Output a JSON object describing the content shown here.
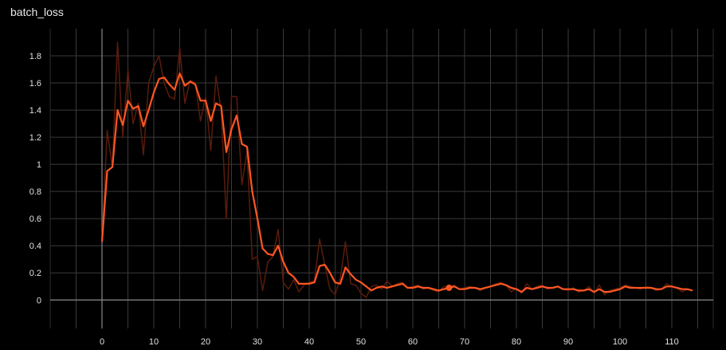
{
  "chart_data": {
    "type": "line",
    "title": "batch_loss",
    "xlabel": "",
    "ylabel": "",
    "xlim": [
      -10,
      118
    ],
    "ylim": [
      -0.21,
      2.0
    ],
    "x_ticks": [
      0,
      10,
      20,
      30,
      40,
      50,
      60,
      70,
      80,
      90,
      100,
      110
    ],
    "y_ticks": [
      0,
      0.2,
      0.4,
      0.6,
      0.8,
      1,
      1.2,
      1.4,
      1.6,
      1.8
    ],
    "y_tick_labels": [
      "0",
      "0.2",
      "0.4",
      "0.6",
      "0.8",
      "1",
      "1.2",
      "1.4",
      "1.6",
      "1.8"
    ],
    "grid": true,
    "colors": {
      "smoothed": "#ff5722",
      "raw": "#5a1c0c",
      "grid": "#3a3a3a",
      "axis": "#888888"
    },
    "highlight_point": {
      "x": 67,
      "y": 0.09
    },
    "series": [
      {
        "role": "raw",
        "x": [
          0,
          1,
          2,
          3,
          4,
          5,
          6,
          7,
          8,
          9,
          10,
          11,
          12,
          13,
          14,
          15,
          16,
          17,
          18,
          19,
          20,
          21,
          22,
          23,
          24,
          25,
          26,
          27,
          28,
          29,
          30,
          31,
          32,
          33,
          34,
          35,
          36,
          37,
          38,
          39,
          40,
          41,
          42,
          43,
          44,
          45,
          46,
          47,
          48,
          49,
          50,
          51,
          52,
          53,
          54,
          55,
          56,
          57,
          58,
          59,
          60,
          61,
          62,
          63,
          64,
          65,
          66,
          67,
          68,
          69,
          70,
          71,
          72,
          73,
          74,
          75,
          76,
          77,
          78,
          79,
          80,
          81,
          82,
          83,
          84,
          85,
          86,
          87,
          88,
          89,
          90,
          91,
          92,
          93,
          94,
          95,
          96,
          97,
          98,
          99,
          100,
          101,
          102,
          103,
          104,
          105,
          106,
          107,
          108,
          109,
          110,
          111,
          112,
          113,
          114
        ],
        "values": [
          0.43,
          1.25,
          0.98,
          1.9,
          1.2,
          1.7,
          1.3,
          1.45,
          1.07,
          1.6,
          1.72,
          1.8,
          1.6,
          1.5,
          1.48,
          1.86,
          1.45,
          1.62,
          1.6,
          1.32,
          1.5,
          1.1,
          1.65,
          1.4,
          0.6,
          1.5,
          1.5,
          0.85,
          1.1,
          0.3,
          0.32,
          0.07,
          0.28,
          0.32,
          0.52,
          0.13,
          0.08,
          0.15,
          0.06,
          0.11,
          0.13,
          0.14,
          0.45,
          0.26,
          0.08,
          0.04,
          0.16,
          0.43,
          0.12,
          0.11,
          0.05,
          0.02,
          0.1,
          0.11,
          0.08,
          0.14,
          0.1,
          0.12,
          0.13,
          0.09,
          0.1,
          0.11,
          0.08,
          0.09,
          0.07,
          0.06,
          0.1,
          0.09,
          0.11,
          0.08,
          0.09,
          0.1,
          0.09,
          0.07,
          0.09,
          0.1,
          0.12,
          0.13,
          0.11,
          0.06,
          0.09,
          0.05,
          0.12,
          0.08,
          0.1,
          0.11,
          0.08,
          0.09,
          0.1,
          0.08,
          0.07,
          0.09,
          0.06,
          0.07,
          0.1,
          0.05,
          0.11,
          0.04,
          0.07,
          0.08,
          0.09,
          0.11,
          0.1,
          0.09,
          0.08,
          0.1,
          0.09,
          0.07,
          0.08,
          0.12,
          0.1,
          0.09,
          0.06,
          0.08,
          0.07
        ]
      },
      {
        "role": "smoothed",
        "x": [
          0,
          1,
          2,
          3,
          4,
          5,
          6,
          7,
          8,
          9,
          10,
          11,
          12,
          13,
          14,
          15,
          16,
          17,
          18,
          19,
          20,
          21,
          22,
          23,
          24,
          25,
          26,
          27,
          28,
          29,
          30,
          31,
          32,
          33,
          34,
          35,
          36,
          37,
          38,
          39,
          40,
          41,
          42,
          43,
          44,
          45,
          46,
          47,
          48,
          49,
          50,
          51,
          52,
          53,
          54,
          55,
          56,
          57,
          58,
          59,
          60,
          61,
          62,
          63,
          64,
          65,
          66,
          67,
          68,
          69,
          70,
          71,
          72,
          73,
          74,
          75,
          76,
          77,
          78,
          79,
          80,
          81,
          82,
          83,
          84,
          85,
          86,
          87,
          88,
          89,
          90,
          91,
          92,
          93,
          94,
          95,
          96,
          97,
          98,
          99,
          100,
          101,
          102,
          103,
          104,
          105,
          106,
          107,
          108,
          109,
          110,
          111,
          112,
          113,
          114
        ],
        "values": [
          0.43,
          0.95,
          0.98,
          1.4,
          1.29,
          1.47,
          1.41,
          1.43,
          1.28,
          1.4,
          1.53,
          1.63,
          1.64,
          1.59,
          1.55,
          1.67,
          1.58,
          1.61,
          1.59,
          1.47,
          1.47,
          1.32,
          1.45,
          1.43,
          1.09,
          1.26,
          1.36,
          1.15,
          1.13,
          0.8,
          0.6,
          0.38,
          0.34,
          0.33,
          0.4,
          0.28,
          0.2,
          0.17,
          0.12,
          0.12,
          0.12,
          0.13,
          0.25,
          0.26,
          0.2,
          0.13,
          0.12,
          0.24,
          0.19,
          0.15,
          0.13,
          0.1,
          0.07,
          0.09,
          0.1,
          0.09,
          0.1,
          0.11,
          0.12,
          0.09,
          0.09,
          0.1,
          0.09,
          0.09,
          0.08,
          0.07,
          0.08,
          0.09,
          0.1,
          0.08,
          0.08,
          0.09,
          0.09,
          0.08,
          0.09,
          0.1,
          0.11,
          0.12,
          0.11,
          0.09,
          0.08,
          0.06,
          0.09,
          0.08,
          0.09,
          0.1,
          0.09,
          0.09,
          0.1,
          0.08,
          0.08,
          0.08,
          0.07,
          0.07,
          0.08,
          0.06,
          0.08,
          0.06,
          0.06,
          0.07,
          0.08,
          0.1,
          0.09,
          0.09,
          0.09,
          0.09,
          0.09,
          0.08,
          0.08,
          0.1,
          0.1,
          0.09,
          0.08,
          0.08,
          0.07
        ]
      }
    ]
  }
}
